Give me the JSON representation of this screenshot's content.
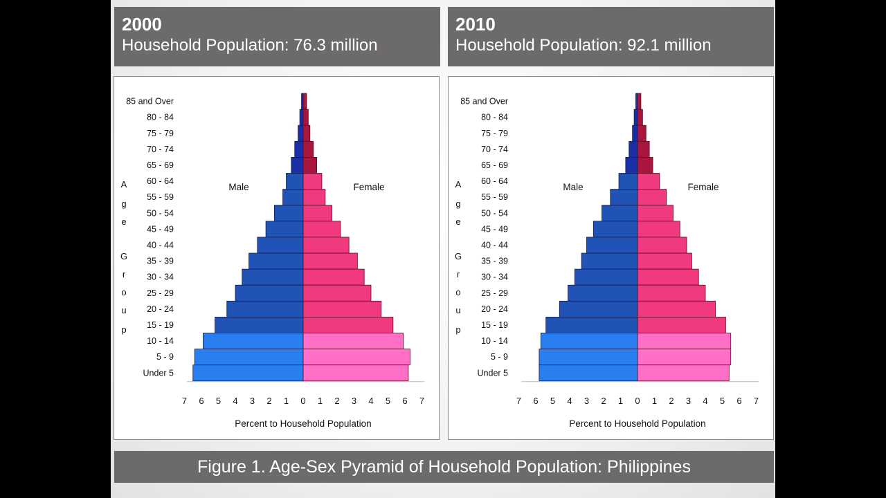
{
  "caption": "Figure 1.  Age-Sex Pyramid of Household Population: Philippines",
  "colors": {
    "header_bg": "#6d6a6b",
    "male_old": "#1a2fa6",
    "male_mid": "#2152b5",
    "male_young": "#2a7ff0",
    "female_old": "#a8163d",
    "female_mid": "#f0397e",
    "female_young": "#ff6fc8"
  },
  "panels": [
    {
      "year": "2000",
      "population": "Household Population: 76.3 million"
    },
    {
      "year": "2010",
      "population": "Household Population: 92.1 million"
    }
  ],
  "chart_data": [
    {
      "type": "bar",
      "orientation": "horizontal-pyramid",
      "title": "",
      "categories": [
        "85 and Over",
        "80 - 84",
        "75 - 79",
        "70 - 74",
        "65 - 69",
        "60 - 64",
        "55 - 59",
        "50 - 54",
        "45 - 49",
        "40 - 44",
        "35 - 39",
        "30 - 34",
        "25 - 29",
        "20 - 24",
        "15 - 19",
        "10 - 14",
        "5 - 9",
        "Under 5"
      ],
      "series": [
        {
          "name": "Male",
          "values": [
            0.1,
            0.2,
            0.3,
            0.5,
            0.7,
            1.0,
            1.2,
            1.7,
            2.2,
            2.7,
            3.2,
            3.6,
            4.0,
            4.5,
            5.2,
            5.9,
            6.4,
            6.5
          ]
        },
        {
          "name": "Female",
          "values": [
            0.2,
            0.3,
            0.4,
            0.6,
            0.8,
            1.1,
            1.3,
            1.7,
            2.2,
            2.7,
            3.2,
            3.6,
            4.0,
            4.6,
            5.3,
            5.9,
            6.3,
            6.2
          ]
        }
      ],
      "xlabel": "Percent to Household Population",
      "ylabel": "Age Group",
      "ylabel_letters": [
        "A",
        "g",
        "e",
        "G",
        "r",
        "o",
        "u",
        "p"
      ],
      "xticks": [
        "7",
        "6",
        "5",
        "4",
        "3",
        "2",
        "1",
        "0",
        "1",
        "2",
        "3",
        "4",
        "5",
        "6",
        "7"
      ],
      "xlim": [
        -7,
        7
      ],
      "grid": false
    },
    {
      "type": "bar",
      "orientation": "horizontal-pyramid",
      "title": "",
      "categories": [
        "85 and Over",
        "80 - 84",
        "75 - 79",
        "70 - 74",
        "65 - 69",
        "60 - 64",
        "55 - 59",
        "50 - 54",
        "45 - 49",
        "40 - 44",
        "35 - 39",
        "30 - 34",
        "25 - 29",
        "20 - 24",
        "15 - 19",
        "10 - 14",
        "5 - 9",
        "Under 5"
      ],
      "series": [
        {
          "name": "Male",
          "values": [
            0.1,
            0.2,
            0.3,
            0.5,
            0.7,
            1.1,
            1.6,
            2.1,
            2.6,
            3.0,
            3.3,
            3.7,
            4.1,
            4.6,
            5.4,
            5.7,
            5.8,
            5.8
          ]
        },
        {
          "name": "Female",
          "values": [
            0.2,
            0.3,
            0.5,
            0.7,
            0.9,
            1.3,
            1.7,
            2.1,
            2.5,
            2.9,
            3.2,
            3.6,
            4.0,
            4.6,
            5.2,
            5.5,
            5.5,
            5.4
          ]
        }
      ],
      "xlabel": "Percent to Household Population",
      "ylabel": "Age Group",
      "ylabel_letters": [
        "A",
        "g",
        "e",
        "G",
        "r",
        "o",
        "u",
        "p"
      ],
      "xticks": [
        "7",
        "6",
        "5",
        "4",
        "3",
        "2",
        "1",
        "0",
        "1",
        "2",
        "3",
        "4",
        "5",
        "6",
        "7"
      ],
      "xlim": [
        -7,
        7
      ],
      "grid": false
    }
  ]
}
